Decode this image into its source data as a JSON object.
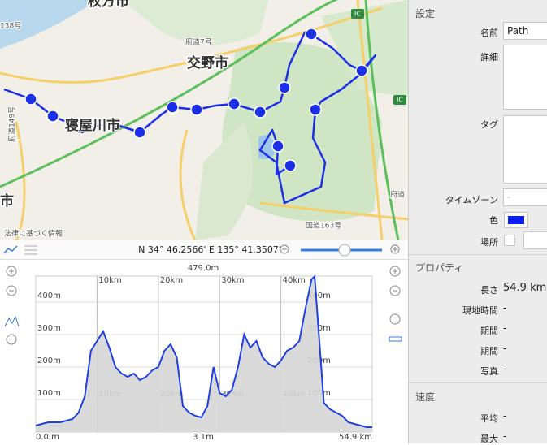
{
  "map": {
    "labels": {
      "city_top": "枚方市",
      "city_katano": "交野市",
      "city_neyagawa": "寝屋川市",
      "city_left": "市",
      "road_7": "府道7号",
      "road_149": "府道149号",
      "road_138": "138号",
      "road_163": "国道163号",
      "road_right": "府道",
      "ic_top": "IC",
      "ic_right": "IC",
      "legal": "法律に基づく情報"
    }
  },
  "toolbar": {
    "coordinates": "N 34° 46.2566' E 135° 41.3507'"
  },
  "elevation": {
    "type": "line",
    "color": "#1f3fe0",
    "x": [
      0,
      1,
      2,
      4,
      6,
      7,
      8,
      9,
      10,
      11,
      12,
      13,
      14,
      15,
      16,
      17,
      18,
      19,
      20,
      21,
      22,
      23,
      24,
      25,
      26,
      27,
      28,
      29,
      30,
      31,
      32,
      33,
      34,
      35,
      36,
      37,
      38,
      39,
      40,
      41,
      42,
      43,
      44,
      45,
      45.5,
      46,
      47,
      48,
      49,
      50,
      51,
      52,
      53,
      54,
      54.9
    ],
    "values": [
      20,
      25,
      30,
      30,
      40,
      60,
      110,
      250,
      280,
      310,
      260,
      200,
      180,
      170,
      180,
      160,
      170,
      190,
      200,
      250,
      270,
      230,
      80,
      60,
      50,
      45,
      80,
      200,
      120,
      110,
      130,
      200,
      300,
      260,
      280,
      230,
      210,
      200,
      220,
      250,
      260,
      280,
      380,
      470,
      479,
      350,
      90,
      70,
      60,
      50,
      30,
      25,
      20,
      15,
      15
    ],
    "xlim": [
      0,
      54.9
    ],
    "ylim": [
      0,
      480
    ],
    "xticks": [
      {
        "value": 10,
        "label": "10km"
      },
      {
        "value": 20,
        "label": "20km"
      },
      {
        "value": 30,
        "label": "30km"
      },
      {
        "value": 40,
        "label": "40km"
      }
    ],
    "yticks": [
      {
        "value": 100,
        "label": "100m"
      },
      {
        "value": 200,
        "label": "200m"
      },
      {
        "value": 300,
        "label": "300m"
      },
      {
        "value": 400,
        "label": "400m"
      }
    ],
    "max_label": "479.0m",
    "min_label": "3.1m",
    "start_label": "0.0 m",
    "end_label": "54.9 km"
  },
  "panel": {
    "settings": {
      "title": "設定",
      "name_label": "名前",
      "name_value": "Path",
      "detail_label": "詳細",
      "tag_label": "タグ",
      "timezone_label": "タイムゾーン",
      "timezone_value": "-",
      "color_label": "色",
      "place_label": "場所"
    },
    "properties": {
      "title": "プロパティ",
      "rows": [
        [
          "長さ",
          "54.9 km"
        ],
        [
          "現地時間",
          "-"
        ],
        [
          "期間",
          "-"
        ],
        [
          "期間",
          "-"
        ],
        [
          "写真",
          "-"
        ]
      ]
    },
    "speed": {
      "title": "速度",
      "rows": [
        [
          "平均",
          "-"
        ],
        [
          "最大",
          "-"
        ]
      ]
    }
  }
}
